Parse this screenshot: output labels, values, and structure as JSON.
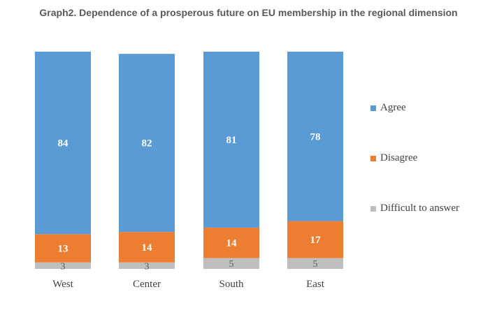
{
  "chart_data": {
    "type": "bar",
    "stacked": true,
    "title": "Graph2. Dependence of a prosperous future on EU membership in the regional dimension",
    "categories": [
      "West",
      "Center",
      "South",
      "East"
    ],
    "series": [
      {
        "name": "Agree",
        "values": [
          84,
          82,
          81,
          78
        ],
        "color": "#5B9BD5",
        "label_color": "#ffffff"
      },
      {
        "name": "Disagree",
        "values": [
          13,
          14,
          14,
          17
        ],
        "color": "#ED7D31",
        "label_color": "#ffffff"
      },
      {
        "name": "Difficult to answer",
        "values": [
          3,
          3,
          5,
          5
        ],
        "color": "#BFBFBF",
        "label_color": "#595959"
      }
    ],
    "ylim": [
      0,
      100
    ],
    "grid": false,
    "legend_position": "right"
  }
}
